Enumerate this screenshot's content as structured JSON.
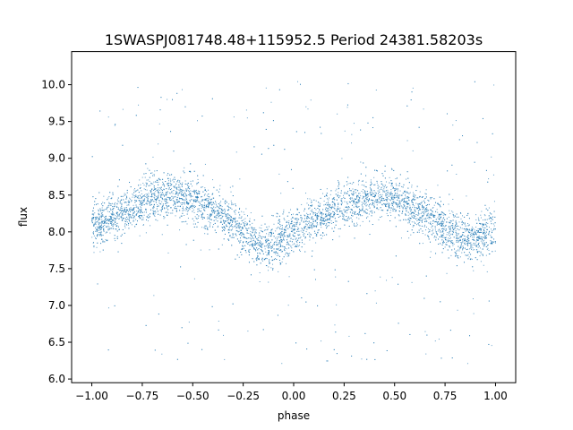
{
  "chart_data": {
    "type": "scatter",
    "title": "1SWASPJ081748.48+115952.5 Period 24381.58203s",
    "xlabel": "phase",
    "ylabel": "flux",
    "xlim": [
      -1.1,
      1.1
    ],
    "ylim": [
      5.95,
      10.45
    ],
    "xticks": [
      -1.0,
      -0.75,
      -0.5,
      -0.25,
      0.0,
      0.25,
      0.5,
      0.75,
      1.0
    ],
    "xtick_labels": [
      "−1.00",
      "−0.75",
      "−0.50",
      "−0.25",
      "0.00",
      "0.25",
      "0.50",
      "0.75",
      "1.00"
    ],
    "yticks": [
      6.0,
      6.5,
      7.0,
      7.5,
      8.0,
      8.5,
      9.0,
      9.5,
      10.0
    ],
    "ytick_labels": [
      "6.0",
      "6.5",
      "7.0",
      "7.5",
      "8.0",
      "8.5",
      "9.0",
      "9.5",
      "10.0"
    ],
    "grid": false,
    "marker_color": "#1f77b4",
    "series": [
      {
        "x": [
          -1.0,
          -0.9,
          -0.8,
          -0.7,
          -0.6,
          -0.5,
          -0.4,
          -0.3,
          -0.2,
          -0.15,
          -0.1,
          0.0,
          0.1,
          0.2,
          0.3,
          0.4,
          0.5,
          0.6,
          0.7,
          0.8,
          0.85,
          0.9,
          1.0
        ],
        "y": [
          8.05,
          8.2,
          8.33,
          8.47,
          8.5,
          8.42,
          8.3,
          8.12,
          7.88,
          7.8,
          7.85,
          8.0,
          8.15,
          8.3,
          8.42,
          8.5,
          8.45,
          8.3,
          8.15,
          7.95,
          7.88,
          7.9,
          8.0
        ],
        "scatter_std": 0.15,
        "outlier_range": [
          6.2,
          10.05
        ]
      }
    ]
  }
}
